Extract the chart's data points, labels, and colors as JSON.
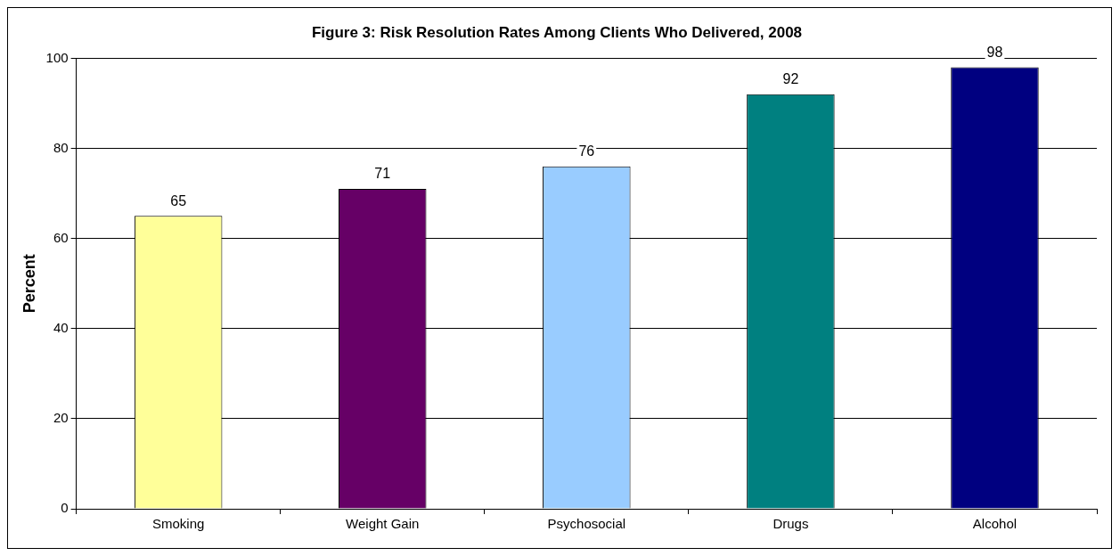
{
  "chart_data": {
    "type": "bar",
    "title": "Figure 3: Risk Resolution Rates Among Clients Who Delivered, 2008",
    "ylabel": "Percent",
    "categories": [
      "Smoking",
      "Weight Gain",
      "Psychosocial",
      "Drugs",
      "Alcohol"
    ],
    "values": [
      65,
      71,
      76,
      92,
      98
    ],
    "colors": [
      "#ffff99",
      "#660066",
      "#99ccff",
      "#008080",
      "#000080"
    ],
    "ylim": [
      0,
      100
    ],
    "yticks": [
      0,
      20,
      40,
      60,
      80,
      100
    ],
    "grid": "y",
    "legend": false,
    "data_labels": true
  }
}
